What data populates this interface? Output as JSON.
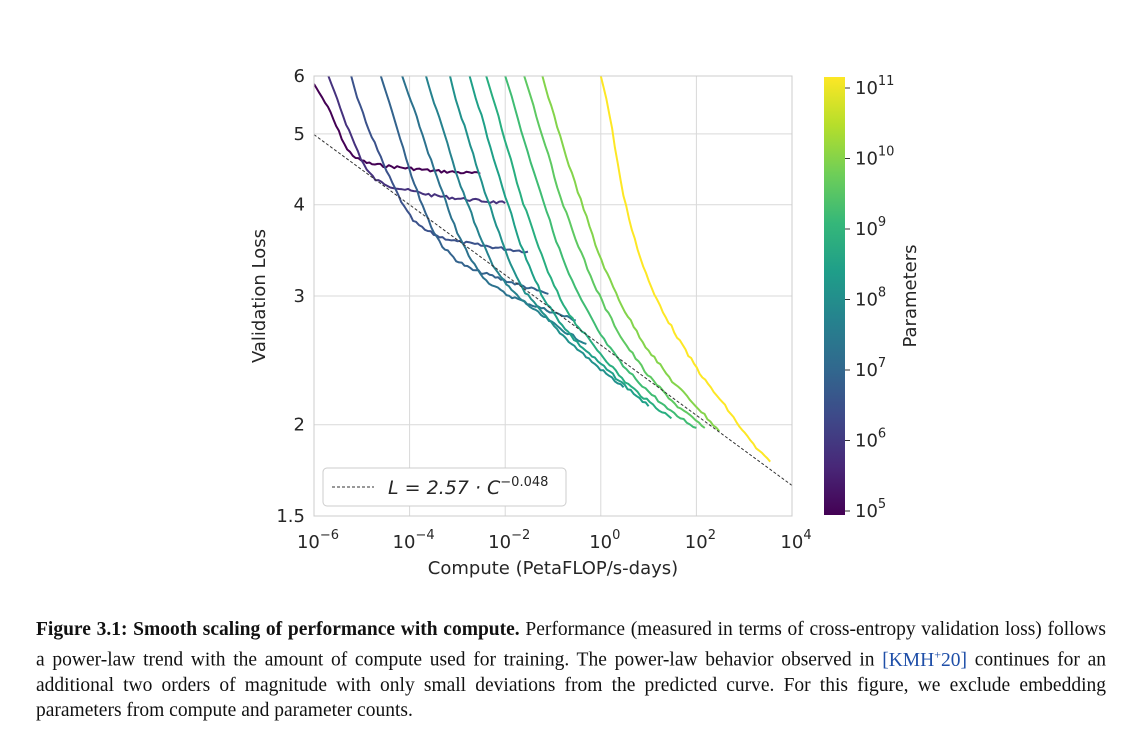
{
  "chart_data": {
    "type": "line",
    "xscale": "log",
    "yscale": "log",
    "xlabel": "Compute (PetaFLOP/s-days)",
    "ylabel": "Validation Loss",
    "x_ticks": [
      {
        "value": 1e-06,
        "base": "10",
        "exp": "−6"
      },
      {
        "value": 0.0001,
        "base": "10",
        "exp": "−4"
      },
      {
        "value": 0.01,
        "base": "10",
        "exp": "−2"
      },
      {
        "value": 1,
        "base": "10",
        "exp": "0"
      },
      {
        "value": 100,
        "base": "10",
        "exp": "2"
      },
      {
        "value": 10000,
        "base": "10",
        "exp": "4"
      }
    ],
    "y_ticks": [
      {
        "value": 1.5,
        "label": "1.5"
      },
      {
        "value": 2,
        "label": "2"
      },
      {
        "value": 3,
        "label": "3"
      },
      {
        "value": 4,
        "label": "4"
      },
      {
        "value": 5,
        "label": "5"
      },
      {
        "value": 6,
        "label": "6"
      }
    ],
    "xlim": [
      1e-06,
      10000
    ],
    "ylim": [
      1.5,
      6
    ],
    "grid": true,
    "trend": {
      "a": 2.57,
      "b": -0.048,
      "legend_text": "L = 2.57 · C",
      "legend_exp": "−0.048",
      "legend_position": "lower-left"
    },
    "series": [
      {
        "params": 100000.0,
        "color": "#440154",
        "x": [
          1e-06,
          1.5e-06,
          2.2e-06,
          3e-06,
          4e-06,
          5e-06,
          8e-06,
          1.5e-05,
          3e-05,
          6e-05,
          0.00012,
          0.0003,
          0.001,
          0.003
        ],
        "y": [
          5.85,
          5.6,
          5.35,
          5.1,
          4.9,
          4.75,
          4.62,
          4.55,
          4.52,
          4.5,
          4.48,
          4.45,
          4.43,
          4.41
        ]
      },
      {
        "params": 300000.0,
        "color": "#46327e",
        "x": [
          2e-06,
          3e-06,
          4.5e-06,
          7e-06,
          1e-05,
          1.3e-05,
          2e-05,
          4e-05,
          0.0001,
          0.0003,
          0.001,
          0.003,
          0.01
        ],
        "y": [
          6.0,
          5.6,
          5.2,
          4.85,
          4.6,
          4.45,
          4.32,
          4.24,
          4.18,
          4.12,
          4.08,
          4.05,
          4.02
        ]
      },
      {
        "params": 1000000.0,
        "color": "#3b528b",
        "x": [
          6e-06,
          8e-06,
          1.2e-05,
          2e-05,
          3e-05,
          5e-05,
          8e-05,
          0.00012,
          0.0002,
          0.0004,
          0.001,
          0.003,
          0.01,
          0.03
        ],
        "y": [
          6.0,
          5.6,
          5.2,
          4.8,
          4.5,
          4.2,
          3.95,
          3.8,
          3.7,
          3.62,
          3.56,
          3.52,
          3.48,
          3.45
        ]
      },
      {
        "params": 3000000.0,
        "color": "#33638d",
        "x": [
          2.5e-05,
          3.5e-05,
          5e-05,
          8e-05,
          0.00012,
          0.0002,
          0.0003,
          0.0005,
          0.001,
          0.002,
          0.005,
          0.01,
          0.03,
          0.08
        ],
        "y": [
          6.0,
          5.6,
          5.2,
          4.7,
          4.3,
          3.95,
          3.7,
          3.5,
          3.35,
          3.26,
          3.2,
          3.15,
          3.08,
          3.02
        ]
      },
      {
        "params": 10000000.0,
        "color": "#2c728e",
        "x": [
          7e-05,
          0.0001,
          0.00015,
          0.00025,
          0.0004,
          0.0006,
          0.001,
          0.002,
          0.004,
          0.01,
          0.03,
          0.1,
          0.3
        ],
        "y": [
          6.0,
          5.6,
          5.2,
          4.7,
          4.3,
          4.0,
          3.65,
          3.35,
          3.15,
          3.02,
          2.93,
          2.85,
          2.78
        ]
      },
      {
        "params": 30000000.0,
        "color": "#26828e",
        "x": [
          0.00022,
          0.0003,
          0.00045,
          0.0007,
          0.0011,
          0.0018,
          0.003,
          0.005,
          0.01,
          0.02,
          0.05,
          0.15,
          0.5
        ],
        "y": [
          6.0,
          5.6,
          5.2,
          4.7,
          4.3,
          3.95,
          3.6,
          3.35,
          3.12,
          2.98,
          2.84,
          2.7,
          2.58
        ]
      },
      {
        "params": 100000000.0,
        "color": "#21918c",
        "x": [
          0.0007,
          0.0009,
          0.0013,
          0.002,
          0.003,
          0.005,
          0.008,
          0.013,
          0.025,
          0.05,
          0.12,
          0.3,
          1,
          3
        ],
        "y": [
          6.0,
          5.6,
          5.2,
          4.75,
          4.35,
          3.95,
          3.6,
          3.3,
          3.05,
          2.88,
          2.7,
          2.55,
          2.38,
          2.25
        ]
      },
      {
        "params": 200000000.0,
        "color": "#1fa088",
        "x": [
          0.0018,
          0.0024,
          0.0035,
          0.005,
          0.008,
          0.013,
          0.02,
          0.035,
          0.06,
          0.12,
          0.3,
          1,
          3,
          10
        ],
        "y": [
          6.0,
          5.6,
          5.2,
          4.75,
          4.3,
          3.9,
          3.55,
          3.25,
          3.0,
          2.8,
          2.6,
          2.42,
          2.27,
          2.12
        ]
      },
      {
        "params": 500000000.0,
        "color": "#28ae80",
        "x": [
          0.004,
          0.0055,
          0.008,
          0.012,
          0.018,
          0.03,
          0.05,
          0.08,
          0.15,
          0.3,
          1,
          3,
          10,
          30
        ],
        "y": [
          6.0,
          5.6,
          5.15,
          4.7,
          4.25,
          3.85,
          3.5,
          3.22,
          2.95,
          2.75,
          2.5,
          2.3,
          2.15,
          2.04
        ]
      },
      {
        "params": 1000000000.0,
        "color": "#3fbc73",
        "x": [
          0.01,
          0.014,
          0.02,
          0.03,
          0.05,
          0.08,
          0.13,
          0.22,
          0.4,
          1,
          3,
          10,
          30,
          100
        ],
        "y": [
          6.0,
          5.6,
          5.15,
          4.7,
          4.25,
          3.85,
          3.5,
          3.2,
          2.95,
          2.65,
          2.4,
          2.22,
          2.08,
          1.98
        ]
      },
      {
        "params": 3000000000.0,
        "color": "#5ec962",
        "x": [
          0.025,
          0.035,
          0.05,
          0.08,
          0.12,
          0.2,
          0.35,
          0.6,
          1.2,
          3,
          10,
          40,
          150
        ],
        "y": [
          6.0,
          5.6,
          5.15,
          4.7,
          4.25,
          3.85,
          3.5,
          3.2,
          2.9,
          2.6,
          2.33,
          2.12,
          1.98
        ]
      },
      {
        "params": 10000000000.0,
        "color": "#84d44b",
        "x": [
          0.06,
          0.08,
          0.12,
          0.18,
          0.3,
          0.5,
          0.8,
          1.4,
          3,
          8,
          30,
          100,
          300
        ],
        "y": [
          6.0,
          5.6,
          5.15,
          4.7,
          4.25,
          3.85,
          3.5,
          3.2,
          2.88,
          2.58,
          2.3,
          2.12,
          1.96
        ]
      },
      {
        "params": 175000000000.0,
        "color": "#fde725",
        "x": [
          1.0,
          1.3,
          1.7,
          2.2,
          3,
          4.5,
          7,
          12,
          25,
          60,
          150,
          400,
          1000,
          2000,
          3500
        ],
        "y": [
          6.0,
          5.6,
          5.1,
          4.6,
          4.1,
          3.7,
          3.35,
          3.05,
          2.78,
          2.52,
          2.3,
          2.12,
          1.95,
          1.84,
          1.78
        ]
      }
    ],
    "colorbar": {
      "label": "Parameters",
      "ticks": [
        {
          "base": "10",
          "exp": "5"
        },
        {
          "base": "10",
          "exp": "6"
        },
        {
          "base": "10",
          "exp": "7"
        },
        {
          "base": "10",
          "exp": "8"
        },
        {
          "base": "10",
          "exp": "9"
        },
        {
          "base": "10",
          "exp": "10"
        },
        {
          "base": "10",
          "exp": "11"
        }
      ],
      "stops": [
        "#440154",
        "#482878",
        "#3e4989",
        "#31688e",
        "#26828e",
        "#1f9e89",
        "#35b779",
        "#6ece58",
        "#b5de2b",
        "#fde725"
      ]
    }
  },
  "caption": {
    "label": "Figure 3.1:",
    "title": "Smooth scaling of performance with compute.",
    "text1": "Performance (measured in terms of cross-entropy validation loss) follows a power-law trend with the amount of compute used for training. The power-law behavior observed in",
    "cite_open": "[KMH",
    "cite_sup": "+",
    "cite_close": "20]",
    "text2": "continues for an additional two orders of magnitude with only small deviations from the predicted curve. For this figure, we exclude embedding parameters from compute and parameter counts."
  }
}
